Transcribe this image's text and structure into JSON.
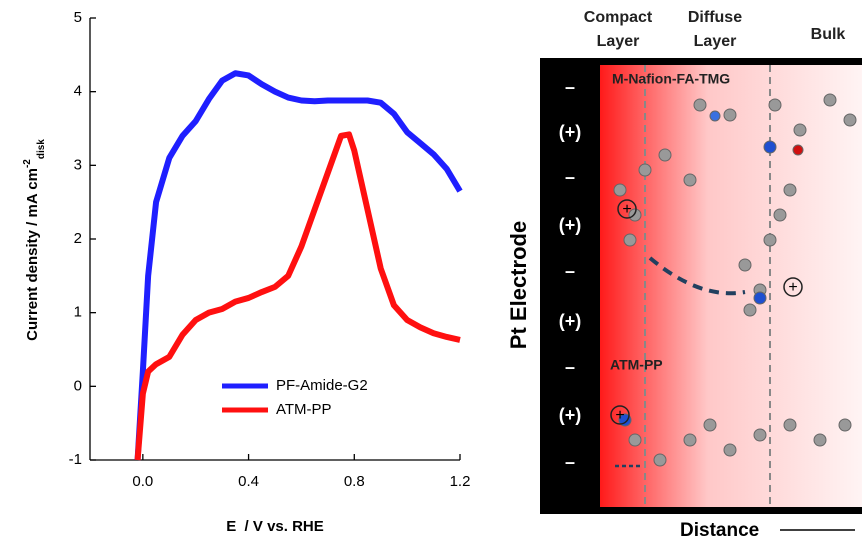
{
  "chart_data": {
    "type": "line",
    "x": [
      -0.02,
      0,
      0.02,
      0.05,
      0.1,
      0.15,
      0.2,
      0.25,
      0.3,
      0.35,
      0.4,
      0.45,
      0.5,
      0.55,
      0.6,
      0.65,
      0.7,
      0.75,
      0.78,
      0.8,
      0.85,
      0.9,
      0.95,
      1.0,
      1.05,
      1.1,
      1.15,
      1.2
    ],
    "series": [
      {
        "name": "PF-Amide-G2",
        "color": "#1f1fff",
        "values": [
          -1,
          0.2,
          1.5,
          2.5,
          3.1,
          3.4,
          3.6,
          3.9,
          4.15,
          4.25,
          4.22,
          4.1,
          4.0,
          3.92,
          3.88,
          3.87,
          3.88,
          3.88,
          3.88,
          3.88,
          3.88,
          3.85,
          3.7,
          3.45,
          3.3,
          3.15,
          2.95,
          2.65
        ]
      },
      {
        "name": "ATM-PP",
        "color": "#ff1010",
        "values": [
          -1,
          -0.1,
          0.2,
          0.3,
          0.4,
          0.7,
          0.9,
          1.0,
          1.05,
          1.15,
          1.2,
          1.28,
          1.35,
          1.5,
          1.9,
          2.4,
          2.9,
          3.4,
          3.42,
          3.2,
          2.4,
          1.6,
          1.1,
          0.9,
          0.8,
          0.72,
          0.67,
          0.63
        ]
      }
    ],
    "xlim": [
      -0.2,
      1.2
    ],
    "xticks": [
      {
        "value": 0,
        "label": "0.0"
      },
      0.4,
      0.8,
      1.2
    ],
    "ylim": [
      -1,
      5
    ],
    "yticks": [
      -1,
      0,
      1,
      2,
      3,
      4,
      5
    ],
    "xlabel": "E  / V vs. RHE",
    "ylabel": {
      "main": "Current density / mA cm",
      "sup": "-2",
      "sub": "disk"
    }
  },
  "diagram": {
    "headers": [
      [
        "Compact",
        "Layer"
      ],
      [
        "Diffuse",
        "Layer"
      ],
      [
        "Bulk"
      ]
    ],
    "side_label": "Pt Electrode",
    "signs": [
      "–",
      "(+)",
      "–",
      "(+)",
      "–",
      "(+)",
      "–",
      "(+)",
      "–"
    ],
    "labels": {
      "top": "M-Nafion-FA-TMG",
      "bottom": "ATM-PP"
    },
    "ion": "+",
    "axis_label": "Distance"
  }
}
